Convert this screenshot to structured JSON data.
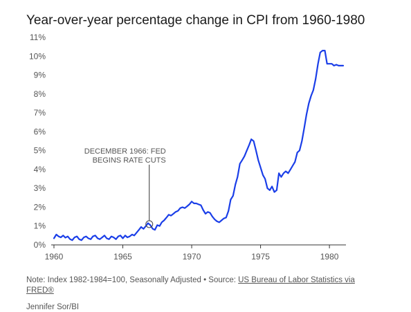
{
  "chart_data": {
    "type": "line",
    "title": "Year-over-year percentage change in CPI from 1960-1980",
    "xlabel": "",
    "ylabel": "",
    "xlim": [
      1959.8,
      1981.2
    ],
    "ylim": [
      0,
      11
    ],
    "x_ticks": [
      {
        "value": 1960,
        "label": "1960"
      },
      {
        "value": 1965,
        "label": "1965"
      },
      {
        "value": 1970,
        "label": "1970"
      },
      {
        "value": 1975,
        "label": "1975"
      },
      {
        "value": 1980,
        "label": "1980"
      }
    ],
    "y_ticks": [
      {
        "value": 0,
        "label": "0%"
      },
      {
        "value": 1,
        "label": "1%"
      },
      {
        "value": 2,
        "label": "2%"
      },
      {
        "value": 3,
        "label": "3%"
      },
      {
        "value": 4,
        "label": "4%"
      },
      {
        "value": 5,
        "label": "5%"
      },
      {
        "value": 6,
        "label": "6%"
      },
      {
        "value": 7,
        "label": "7%"
      },
      {
        "value": 8,
        "label": "8%"
      },
      {
        "value": 9,
        "label": "9%"
      },
      {
        "value": 10,
        "label": "10%"
      },
      {
        "value": 11,
        "label": "11%"
      }
    ],
    "grid": false,
    "line_color": "#1a3ee8",
    "series": [
      {
        "name": "",
        "x": [
          1960.0,
          1960.17,
          1960.33,
          1960.5,
          1960.67,
          1960.83,
          1961.0,
          1961.17,
          1961.33,
          1961.5,
          1961.67,
          1961.83,
          1962.0,
          1962.17,
          1962.33,
          1962.5,
          1962.67,
          1962.83,
          1963.0,
          1963.17,
          1963.33,
          1963.5,
          1963.67,
          1963.83,
          1964.0,
          1964.17,
          1964.33,
          1964.5,
          1964.67,
          1964.83,
          1965.0,
          1965.17,
          1965.33,
          1965.5,
          1965.67,
          1965.83,
          1966.0,
          1966.17,
          1966.33,
          1966.5,
          1966.67,
          1966.83,
          1967.0,
          1967.17,
          1967.33,
          1967.5,
          1967.67,
          1967.83,
          1968.0,
          1968.17,
          1968.33,
          1968.5,
          1968.67,
          1968.83,
          1969.0,
          1969.17,
          1969.33,
          1969.5,
          1969.67,
          1969.83,
          1970.0,
          1970.17,
          1970.33,
          1970.5,
          1970.67,
          1970.83,
          1971.0,
          1971.17,
          1971.33,
          1971.5,
          1971.67,
          1971.83,
          1972.0,
          1972.17,
          1972.33,
          1972.5,
          1972.67,
          1972.83,
          1973.0,
          1973.17,
          1973.33,
          1973.5,
          1973.67,
          1973.83,
          1974.0,
          1974.17,
          1974.33,
          1974.5,
          1974.67,
          1974.83,
          1975.0,
          1975.17,
          1975.33,
          1975.5,
          1975.67,
          1975.83,
          1976.0,
          1976.17,
          1976.33,
          1976.5,
          1976.67,
          1976.83,
          1977.0,
          1977.17,
          1977.33,
          1977.5,
          1977.67,
          1977.83,
          1978.0,
          1978.17,
          1978.33,
          1978.5,
          1978.67,
          1978.83,
          1979.0,
          1979.17,
          1979.33,
          1979.5,
          1979.67,
          1979.83,
          1980.0,
          1980.17,
          1980.33,
          1980.5,
          1980.67,
          1980.83,
          1981.0
        ],
        "values": [
          0.35,
          0.55,
          0.45,
          0.4,
          0.5,
          0.38,
          0.45,
          0.3,
          0.25,
          0.4,
          0.45,
          0.3,
          0.25,
          0.4,
          0.45,
          0.35,
          0.3,
          0.45,
          0.5,
          0.35,
          0.3,
          0.4,
          0.5,
          0.35,
          0.3,
          0.45,
          0.4,
          0.3,
          0.45,
          0.5,
          0.35,
          0.5,
          0.4,
          0.45,
          0.55,
          0.5,
          0.65,
          0.8,
          0.95,
          0.85,
          1.0,
          1.15,
          1.05,
          0.85,
          0.8,
          1.05,
          1.0,
          1.2,
          1.3,
          1.45,
          1.6,
          1.55,
          1.65,
          1.75,
          1.8,
          1.95,
          2.0,
          1.95,
          2.05,
          2.15,
          2.3,
          2.2,
          2.2,
          2.15,
          2.1,
          1.85,
          1.65,
          1.75,
          1.7,
          1.5,
          1.35,
          1.25,
          1.2,
          1.3,
          1.4,
          1.45,
          1.8,
          2.4,
          2.6,
          3.2,
          3.6,
          4.3,
          4.5,
          4.7,
          5.0,
          5.3,
          5.6,
          5.5,
          5.0,
          4.5,
          4.1,
          3.7,
          3.5,
          3.0,
          2.9,
          3.1,
          2.8,
          2.9,
          3.8,
          3.6,
          3.8,
          3.9,
          3.8,
          4.0,
          4.2,
          4.4,
          4.9,
          5.0,
          5.5,
          6.2,
          6.9,
          7.5,
          7.9,
          8.2,
          8.8,
          9.6,
          10.2,
          10.3,
          10.3,
          9.6,
          9.6,
          9.6,
          9.5,
          9.55,
          9.5,
          9.5,
          9.5
        ]
      }
    ],
    "annotation": {
      "line1": "DECEMBER 1966: FED",
      "line2": "BEGINS RATE CUTS",
      "x": 1966.92,
      "y": 1.1
    }
  },
  "note": {
    "prefix": "Note: Index 1982-1984=100, Seasonally Adjusted • Source: ",
    "link": "US Bureau of Labor Statistics via FRED®"
  },
  "credit": "Jennifer Sor/BI"
}
